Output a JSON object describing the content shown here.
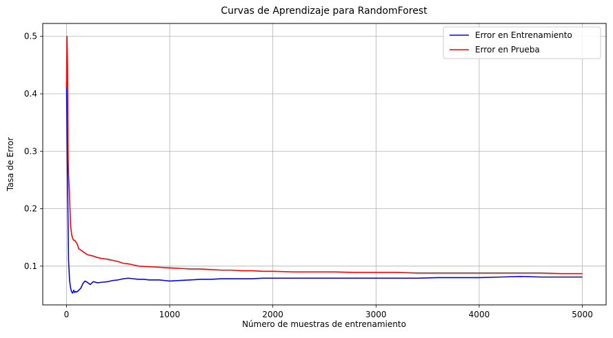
{
  "chart_data": {
    "type": "line",
    "title": "Curvas de Aprendizaje para RandomForest",
    "xlabel": "Número de muestras de entrenamiento",
    "ylabel": "Tasa de Error",
    "xlim": [
      -230,
      5230
    ],
    "ylim": [
      0.0325,
      0.5225
    ],
    "xticks": [
      0,
      1000,
      2000,
      3000,
      4000,
      5000
    ],
    "yticks": [
      0.1,
      0.2,
      0.3,
      0.4,
      0.5
    ],
    "xtick_labels": [
      "0",
      "1000",
      "2000",
      "3000",
      "4000",
      "5000"
    ],
    "ytick_labels": [
      "0.1",
      "0.2",
      "0.3",
      "0.4",
      "0.5"
    ],
    "grid": true,
    "legend_position": "top-right",
    "series": [
      {
        "name": "Error en Entrenamiento",
        "color": "#0000ff",
        "x": [
          0,
          10,
          20,
          30,
          40,
          50,
          60,
          70,
          80,
          90,
          100,
          120,
          140,
          160,
          180,
          200,
          230,
          260,
          300,
          350,
          400,
          450,
          500,
          550,
          600,
          650,
          700,
          750,
          800,
          850,
          900,
          950,
          1000,
          1100,
          1200,
          1300,
          1400,
          1500,
          1600,
          1700,
          1800,
          1900,
          2000,
          2200,
          2400,
          2600,
          2800,
          3000,
          3200,
          3400,
          3600,
          3800,
          4000,
          4200,
          4400,
          4600,
          4800,
          5000
        ],
        "y": [
          0.42,
          0.25,
          0.11,
          0.075,
          0.062,
          0.055,
          0.053,
          0.058,
          0.054,
          0.056,
          0.055,
          0.058,
          0.062,
          0.07,
          0.074,
          0.072,
          0.068,
          0.073,
          0.071,
          0.072,
          0.073,
          0.075,
          0.076,
          0.078,
          0.079,
          0.078,
          0.077,
          0.077,
          0.076,
          0.076,
          0.076,
          0.075,
          0.074,
          0.075,
          0.076,
          0.077,
          0.077,
          0.078,
          0.078,
          0.078,
          0.078,
          0.079,
          0.079,
          0.079,
          0.079,
          0.079,
          0.079,
          0.079,
          0.079,
          0.079,
          0.08,
          0.08,
          0.08,
          0.081,
          0.082,
          0.081,
          0.081,
          0.081
        ]
      },
      {
        "name": "Error en Prueba",
        "color": "#ff0000",
        "x": [
          0,
          5,
          10,
          15,
          20,
          30,
          40,
          50,
          60,
          70,
          80,
          100,
          120,
          140,
          160,
          180,
          200,
          250,
          300,
          350,
          400,
          450,
          500,
          550,
          600,
          650,
          700,
          800,
          900,
          1000,
          1100,
          1200,
          1300,
          1400,
          1500,
          1600,
          1700,
          1800,
          1900,
          2000,
          2200,
          2400,
          2600,
          2800,
          3000,
          3200,
          3400,
          3600,
          3800,
          4000,
          4200,
          4400,
          4600,
          4800,
          5000
        ],
        "y": [
          0.41,
          0.5,
          0.45,
          0.3,
          0.26,
          0.22,
          0.17,
          0.155,
          0.148,
          0.145,
          0.145,
          0.14,
          0.13,
          0.128,
          0.125,
          0.123,
          0.12,
          0.118,
          0.115,
          0.113,
          0.112,
          0.11,
          0.108,
          0.105,
          0.104,
          0.102,
          0.1,
          0.099,
          0.098,
          0.097,
          0.096,
          0.095,
          0.095,
          0.094,
          0.093,
          0.093,
          0.092,
          0.092,
          0.091,
          0.091,
          0.09,
          0.09,
          0.09,
          0.089,
          0.089,
          0.089,
          0.088,
          0.088,
          0.088,
          0.088,
          0.088,
          0.088,
          0.088,
          0.087,
          0.087
        ]
      }
    ]
  }
}
